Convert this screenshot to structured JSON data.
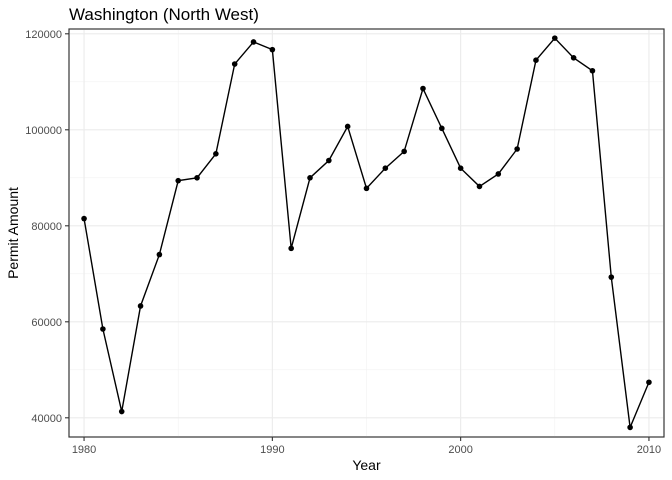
{
  "chart_data": {
    "type": "line",
    "title": "Washington (North West)",
    "xlabel": "Year",
    "ylabel": "Permit Amount",
    "x_ticks": [
      1980,
      1990,
      2000,
      2010
    ],
    "y_ticks": [
      40000,
      60000,
      80000,
      100000,
      120000
    ],
    "x_tick_labels": [
      "1980",
      "1990",
      "2000",
      "2010"
    ],
    "y_tick_labels": [
      "40000",
      "60000",
      "80000",
      "100000",
      "120000"
    ],
    "xlim": [
      1979.2,
      2010.8
    ],
    "ylim": [
      36000,
      121000
    ],
    "grid": true,
    "series": [
      {
        "color": "#000000",
        "x": [
          1980,
          1981,
          1982,
          1983,
          1984,
          1985,
          1986,
          1987,
          1988,
          1989,
          1990,
          1991,
          1992,
          1993,
          1994,
          1995,
          1996,
          1997,
          1998,
          1999,
          2000,
          2001,
          2002,
          2003,
          2004,
          2005,
          2006,
          2007,
          2008,
          2009,
          2010
        ],
        "values": [
          81500,
          58500,
          41300,
          63300,
          74000,
          89400,
          90000,
          95000,
          113700,
          118300,
          116700,
          75300,
          90000,
          93600,
          100700,
          87800,
          92000,
          95500,
          108600,
          100300,
          92000,
          88200,
          90800,
          96000,
          114500,
          119100,
          115000,
          112300,
          69300,
          38000,
          47400
        ]
      }
    ]
  }
}
